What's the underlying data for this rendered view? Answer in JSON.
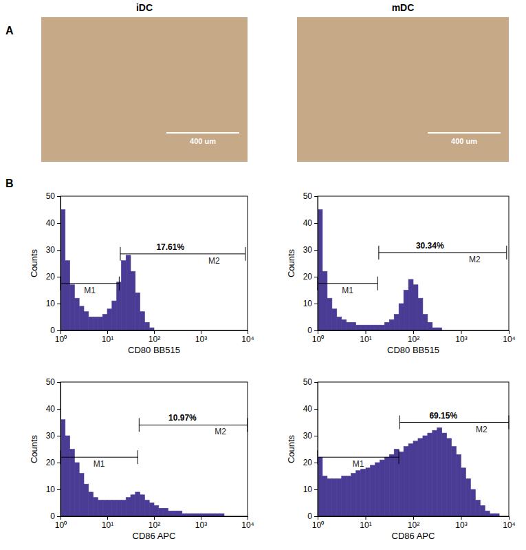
{
  "columns": [
    "iDC",
    "mDC"
  ],
  "panel_labels": [
    "A",
    "B"
  ],
  "images": [
    {
      "scale_bar": "400 um"
    },
    {
      "scale_bar": "400 um"
    }
  ],
  "chart_data": [
    {
      "type": "histogram",
      "x_label": "CD80 BB515",
      "y_label": "Counts",
      "color": "#4a3c95",
      "log": "x",
      "xlim": [
        1,
        10000
      ],
      "ylim": [
        0,
        50
      ],
      "xticks": [
        {
          "value": 1,
          "label": "10⁰"
        },
        {
          "value": 10,
          "label": "10¹"
        },
        {
          "value": 100,
          "label": "10²"
        },
        {
          "value": 1000,
          "label": "10³"
        },
        {
          "value": 10000,
          "label": "10⁴"
        }
      ],
      "yticks": [
        0,
        10,
        20,
        30,
        40,
        50
      ],
      "bins": [
        1,
        1.259,
        1.585,
        1.995,
        2.512,
        3.162,
        3.981,
        5.012,
        6.31,
        7.943,
        10,
        12.59,
        15.85,
        19.95,
        25.12,
        31.62,
        39.81,
        50.12,
        63.1,
        79.43,
        100,
        125.9,
        158.5,
        199.5,
        251.2,
        316.2,
        398.1,
        501.2,
        631,
        794.3,
        1000,
        1259,
        1585,
        1995,
        2512,
        3162,
        3981,
        5012,
        6310,
        7943,
        10000
      ],
      "counts": [
        45,
        26,
        17,
        12,
        9,
        7,
        5,
        5,
        5,
        6,
        8,
        11,
        18,
        26,
        28,
        22,
        14,
        7,
        3,
        1,
        0,
        0,
        0,
        0,
        0,
        0,
        0,
        0,
        0,
        0,
        0,
        0,
        0,
        0,
        0,
        0,
        0,
        0,
        0,
        0
      ],
      "gates": [
        {
          "name": "M1",
          "x": [
            1,
            18
          ],
          "y": 17.5
        },
        {
          "name": "M2",
          "x": [
            19,
            9000
          ],
          "y": 28.5,
          "label": "17.61%"
        }
      ]
    },
    {
      "type": "histogram",
      "x_label": "CD80 BB515",
      "y_label": "Counts",
      "color": "#4a3c95",
      "log": "x",
      "xlim": [
        1,
        10000
      ],
      "ylim": [
        0,
        50
      ],
      "xticks": [
        {
          "value": 1,
          "label": "10⁰"
        },
        {
          "value": 10,
          "label": "10¹"
        },
        {
          "value": 100,
          "label": "10²"
        },
        {
          "value": 1000,
          "label": "10³"
        },
        {
          "value": 10000,
          "label": "10⁴"
        }
      ],
      "yticks": [
        0,
        10,
        20,
        30,
        40,
        50
      ],
      "bins": [
        1,
        1.259,
        1.585,
        1.995,
        2.512,
        3.162,
        3.981,
        5.012,
        6.31,
        7.943,
        10,
        12.59,
        15.85,
        19.95,
        25.12,
        31.62,
        39.81,
        50.12,
        63.1,
        79.43,
        100,
        125.9,
        158.5,
        199.5,
        251.2,
        316.2,
        398.1,
        501.2,
        631,
        794.3,
        1000,
        1259,
        1585,
        1995,
        2512,
        3162,
        3981,
        5012,
        6310,
        7943,
        10000
      ],
      "counts": [
        45,
        22,
        12,
        8,
        5,
        4,
        3,
        3,
        2,
        2,
        2,
        2,
        2,
        2,
        3,
        4,
        6,
        10,
        15,
        19,
        17,
        12,
        6,
        3,
        1,
        1,
        0,
        0,
        0,
        0,
        0,
        0,
        0,
        0,
        0,
        0,
        0,
        0,
        0,
        0
      ],
      "gates": [
        {
          "name": "M1",
          "x": [
            1,
            18
          ],
          "y": 17.5
        },
        {
          "name": "M2",
          "x": [
            19,
            9000
          ],
          "y": 29,
          "label": "30.34%"
        }
      ]
    },
    {
      "type": "histogram",
      "x_label": "CD86 APC",
      "y_label": "Counts",
      "color": "#4a3c95",
      "log": "x",
      "xlim": [
        1,
        10000
      ],
      "ylim": [
        0,
        50
      ],
      "xticks": [
        {
          "value": 1,
          "label": "10⁰"
        },
        {
          "value": 10,
          "label": "10¹"
        },
        {
          "value": 100,
          "label": "10²"
        },
        {
          "value": 1000,
          "label": "10³"
        },
        {
          "value": 10000,
          "label": "10⁴"
        }
      ],
      "yticks": [
        0,
        10,
        20,
        30,
        40,
        50
      ],
      "bins": [
        1,
        1.259,
        1.585,
        1.995,
        2.512,
        3.162,
        3.981,
        5.012,
        6.31,
        7.943,
        10,
        12.59,
        15.85,
        19.95,
        25.12,
        31.62,
        39.81,
        50.12,
        63.1,
        79.43,
        100,
        125.9,
        158.5,
        199.5,
        251.2,
        316.2,
        398.1,
        501.2,
        631,
        794.3,
        1000,
        1259,
        1585,
        1995,
        2512,
        3162,
        3981,
        5012,
        6310,
        7943,
        10000
      ],
      "counts": [
        36,
        30,
        25,
        20,
        16,
        12,
        9,
        7,
        6,
        6,
        6,
        6,
        6,
        6,
        7,
        8,
        9,
        8,
        6,
        5,
        4,
        3,
        3,
        2,
        2,
        2,
        1,
        1,
        1,
        1,
        1,
        1,
        1,
        1,
        1,
        0,
        0,
        0,
        0,
        0
      ],
      "gates": [
        {
          "name": "M1",
          "x": [
            1,
            45
          ],
          "y": 22
        },
        {
          "name": "M2",
          "x": [
            48,
            10000
          ],
          "y": 34,
          "label": "10.97%"
        }
      ]
    },
    {
      "type": "histogram",
      "x_label": "CD86 APC",
      "y_label": "Counts",
      "color": "#4a3c95",
      "log": "x",
      "xlim": [
        1,
        10000
      ],
      "ylim": [
        0,
        50
      ],
      "xticks": [
        {
          "value": 1,
          "label": "10⁰"
        },
        {
          "value": 10,
          "label": "10¹"
        },
        {
          "value": 100,
          "label": "10²"
        },
        {
          "value": 1000,
          "label": "10³"
        },
        {
          "value": 10000,
          "label": "10⁴"
        }
      ],
      "yticks": [
        0,
        10,
        20,
        30,
        40,
        50
      ],
      "bins": [
        1,
        1.259,
        1.585,
        1.995,
        2.512,
        3.162,
        3.981,
        5.012,
        6.31,
        7.943,
        10,
        12.59,
        15.85,
        19.95,
        25.12,
        31.62,
        39.81,
        50.12,
        63.1,
        79.43,
        100,
        125.9,
        158.5,
        199.5,
        251.2,
        316.2,
        398.1,
        501.2,
        631,
        794.3,
        1000,
        1259,
        1585,
        1995,
        2512,
        3162,
        3981,
        5012,
        6310,
        7943,
        10000
      ],
      "counts": [
        22,
        15,
        14,
        14,
        14,
        15,
        15,
        16,
        17,
        18,
        18,
        19,
        20,
        21,
        22,
        23,
        25,
        24,
        26,
        27,
        28,
        29,
        30,
        31,
        32,
        33,
        31,
        29,
        26,
        23,
        18,
        14,
        10,
        6,
        4,
        2,
        1,
        1,
        0,
        0
      ],
      "gates": [
        {
          "name": "M1",
          "x": [
            1,
            50
          ],
          "y": 22
        },
        {
          "name": "M2",
          "x": [
            52,
            10000
          ],
          "y": 35,
          "label": "69.15%"
        }
      ]
    }
  ]
}
